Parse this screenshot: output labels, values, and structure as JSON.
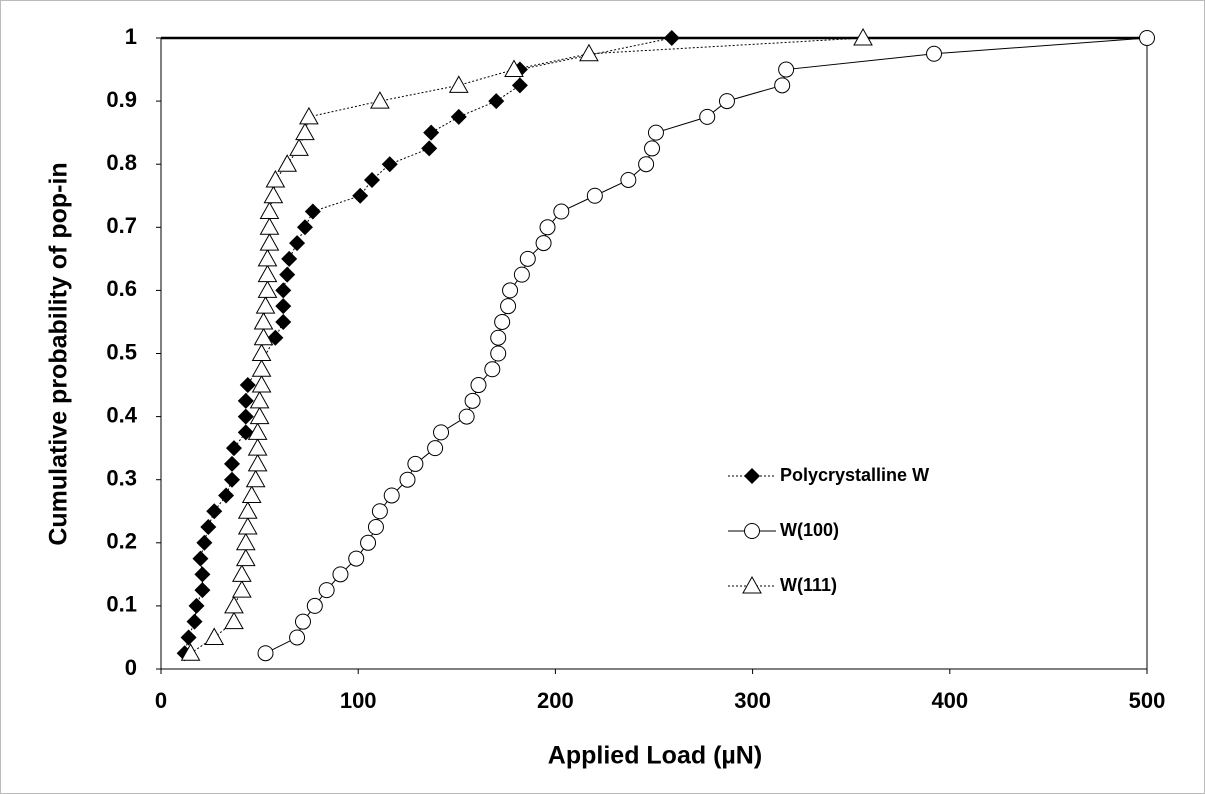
{
  "chart_data": {
    "type": "scatter",
    "x_label": "Applied Load (µN)",
    "y_label": "Cumulative probability of pop-in",
    "xlim": [
      0,
      500
    ],
    "xticks": [
      0,
      100,
      200,
      300,
      400,
      500
    ],
    "ylim": [
      0,
      1
    ],
    "yticks": [
      0,
      0.1,
      0.2,
      0.3,
      0.4,
      0.5,
      0.6,
      0.7,
      0.8,
      0.9,
      1
    ],
    "series": [
      {
        "name": "Polycrystalline W",
        "color": "#000000",
        "marker": "diamond",
        "line_style": "dotted",
        "x": [
          12,
          14,
          17,
          18,
          21,
          21,
          20,
          22,
          24,
          27,
          33,
          36,
          36,
          37,
          43,
          43,
          43,
          44,
          58,
          62,
          62,
          62,
          64,
          65,
          69,
          73,
          77,
          101,
          107,
          116,
          136,
          137,
          151,
          170,
          182,
          182,
          259
        ],
        "values": [
          0.025,
          0.05,
          0.075,
          0.1,
          0.125,
          0.15,
          0.175,
          0.2,
          0.225,
          0.25,
          0.275,
          0.3,
          0.325,
          0.35,
          0.375,
          0.4,
          0.425,
          0.45,
          0.525,
          0.55,
          0.575,
          0.6,
          0.625,
          0.65,
          0.675,
          0.7,
          0.725,
          0.75,
          0.775,
          0.8,
          0.825,
          0.85,
          0.875,
          0.9,
          0.925,
          0.95,
          1
        ]
      },
      {
        "name": "W(100)",
        "color": "#000000",
        "marker": "circle",
        "line_style": "solid",
        "x": [
          53,
          69,
          72,
          78,
          84,
          91,
          99,
          105,
          109,
          111,
          117,
          125,
          129,
          139,
          142,
          155,
          158,
          161,
          168,
          171,
          171,
          173,
          176,
          177,
          183,
          186,
          194,
          196,
          203,
          220,
          237,
          246,
          249,
          251,
          277,
          287,
          315,
          317,
          392,
          500
        ],
        "values": [
          0.025,
          0.05,
          0.075,
          0.1,
          0.125,
          0.15,
          0.175,
          0.2,
          0.225,
          0.25,
          0.275,
          0.3,
          0.325,
          0.35,
          0.375,
          0.4,
          0.425,
          0.45,
          0.475,
          0.5,
          0.525,
          0.55,
          0.575,
          0.6,
          0.625,
          0.65,
          0.675,
          0.7,
          0.725,
          0.75,
          0.775,
          0.8,
          0.825,
          0.85,
          0.875,
          0.9,
          0.925,
          0.95,
          0.975,
          1
        ]
      },
      {
        "name": "W(111)",
        "color": "#000000",
        "marker": "triangle",
        "line_style": "dotted",
        "x": [
          15,
          27,
          37,
          37,
          41,
          41,
          43,
          43,
          44,
          44,
          46,
          48,
          49,
          49,
          49,
          50,
          50,
          51,
          51,
          51,
          52,
          52,
          53,
          54,
          54,
          54,
          55,
          55,
          55,
          57,
          58,
          64,
          70,
          73,
          75,
          111,
          151,
          179,
          217,
          356
        ],
        "values": [
          0.025,
          0.05,
          0.075,
          0.1,
          0.125,
          0.15,
          0.175,
          0.2,
          0.225,
          0.25,
          0.275,
          0.3,
          0.325,
          0.35,
          0.375,
          0.4,
          0.425,
          0.45,
          0.475,
          0.5,
          0.525,
          0.55,
          0.575,
          0.6,
          0.625,
          0.65,
          0.675,
          0.7,
          0.725,
          0.75,
          0.775,
          0.8,
          0.825,
          0.85,
          0.875,
          0.9,
          0.925,
          0.95,
          0.975,
          1
        ]
      }
    ]
  }
}
